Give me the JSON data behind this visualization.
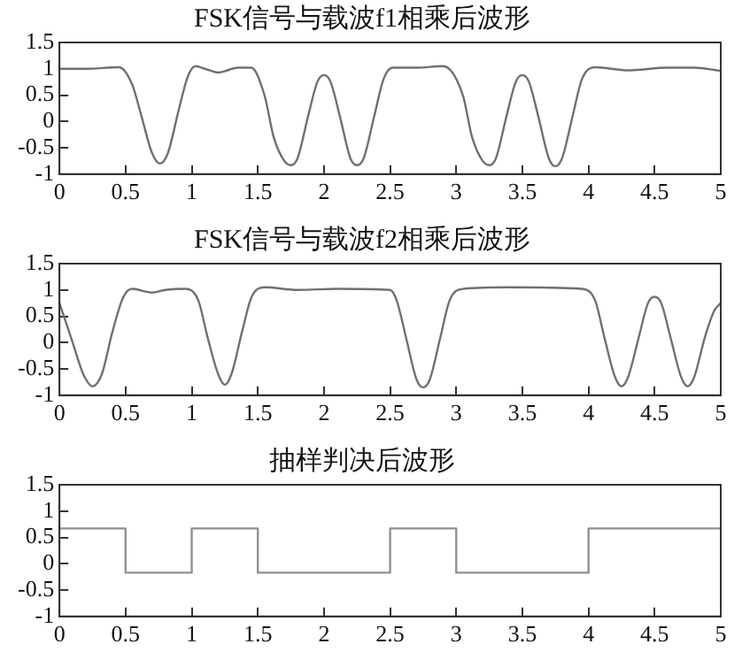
{
  "chart_data": [
    {
      "type": "line",
      "title": "FSK信号与载波f1相乘后波形",
      "xlim": [
        0,
        5
      ],
      "ylim": [
        -1,
        1.5
      ],
      "xticks": [
        0,
        0.5,
        1,
        1.5,
        2,
        2.5,
        3,
        3.5,
        4,
        4.5,
        5
      ],
      "yticks": [
        -1,
        -0.5,
        0,
        0.5,
        1,
        1.5
      ],
      "grid": false,
      "legend": false,
      "marker": "none",
      "line_style": "solid",
      "series": [
        {
          "color": "#707070",
          "x": [
            0,
            0.2,
            0.45,
            0.55,
            0.62,
            0.7,
            0.76,
            0.82,
            0.9,
            0.97,
            1.03,
            1.1,
            1.2,
            1.35,
            1.45,
            1.55,
            1.62,
            1.7,
            1.75,
            1.8,
            1.88,
            1.95,
            2,
            2.05,
            2.12,
            2.2,
            2.25,
            2.3,
            2.38,
            2.45,
            2.52,
            2.7,
            2.9,
            3.05,
            3.12,
            3.2,
            3.25,
            3.3,
            3.38,
            3.45,
            3.5,
            3.55,
            3.62,
            3.7,
            3.75,
            3.8,
            3.88,
            3.95,
            4.05,
            4.3,
            4.6,
            4.8,
            5
          ],
          "values": [
            1,
            1,
            1.03,
            0.7,
            0.1,
            -0.6,
            -0.8,
            -0.6,
            0.2,
            0.85,
            1.05,
            1,
            0.93,
            1.02,
            1.02,
            0.5,
            -0.3,
            -0.75,
            -0.83,
            -0.7,
            0.1,
            0.75,
            0.88,
            0.75,
            0.1,
            -0.7,
            -0.83,
            -0.7,
            0.1,
            0.8,
            1.02,
            1.02,
            1.05,
            0.5,
            -0.3,
            -0.75,
            -0.83,
            -0.7,
            0.1,
            0.75,
            0.88,
            0.75,
            0.1,
            -0.7,
            -0.85,
            -0.7,
            0.1,
            0.8,
            1.03,
            0.97,
            1.02,
            1.02,
            0.96
          ]
        }
      ]
    },
    {
      "type": "line",
      "title": "FSK信号与载波f2相乘后波形",
      "xlim": [
        0,
        5
      ],
      "ylim": [
        -1,
        1.5
      ],
      "xticks": [
        0,
        0.5,
        1,
        1.5,
        2,
        2.5,
        3,
        3.5,
        4,
        4.5,
        5
      ],
      "yticks": [
        -1,
        -0.5,
        0,
        0.5,
        1,
        1.5
      ],
      "grid": false,
      "legend": false,
      "marker": "none",
      "line_style": "solid",
      "series": [
        {
          "color": "#707070",
          "x": [
            0,
            0.1,
            0.18,
            0.25,
            0.32,
            0.4,
            0.48,
            0.55,
            0.7,
            0.8,
            0.95,
            1.05,
            1.12,
            1.2,
            1.25,
            1.3,
            1.38,
            1.45,
            1.55,
            1.8,
            2.1,
            2.5,
            2.55,
            2.62,
            2.7,
            2.75,
            2.8,
            2.88,
            2.95,
            3.05,
            3.4,
            3.95,
            4.05,
            4.12,
            4.2,
            4.25,
            4.3,
            4.38,
            4.45,
            4.5,
            4.55,
            4.62,
            4.7,
            4.75,
            4.8,
            4.88,
            4.95,
            5
          ],
          "values": [
            0.75,
            0,
            -0.6,
            -0.83,
            -0.6,
            0.2,
            0.85,
            1.02,
            0.95,
            1,
            1.02,
            0.8,
            0.1,
            -0.6,
            -0.8,
            -0.6,
            0.2,
            0.85,
            1.05,
            1,
            1.02,
            1,
            0.8,
            0.1,
            -0.7,
            -0.85,
            -0.7,
            0.1,
            0.8,
            1.02,
            1.05,
            1.02,
            0.8,
            0.1,
            -0.65,
            -0.83,
            -0.65,
            0.1,
            0.75,
            0.87,
            0.75,
            0.1,
            -0.65,
            -0.83,
            -0.65,
            0.1,
            0.6,
            0.75
          ]
        }
      ]
    },
    {
      "type": "step",
      "title": "抽样判决后波形",
      "xlim": [
        0,
        5
      ],
      "ylim": [
        -1,
        1.5
      ],
      "xticks": [
        0,
        0.5,
        1,
        1.5,
        2,
        2.5,
        3,
        3.5,
        4,
        4.5,
        5
      ],
      "yticks": [
        -1,
        -0.5,
        0,
        0.5,
        1,
        1.5
      ],
      "grid": false,
      "legend": false,
      "marker": "none",
      "line_style": "solid",
      "series": [
        {
          "color": "#909090",
          "x": [
            0,
            0.5,
            1,
            1.5,
            2.5,
            3,
            4,
            5
          ],
          "values": [
            0.67,
            -0.17,
            0.67,
            -0.17,
            0.67,
            -0.17,
            0.67,
            0.67
          ]
        }
      ]
    }
  ]
}
